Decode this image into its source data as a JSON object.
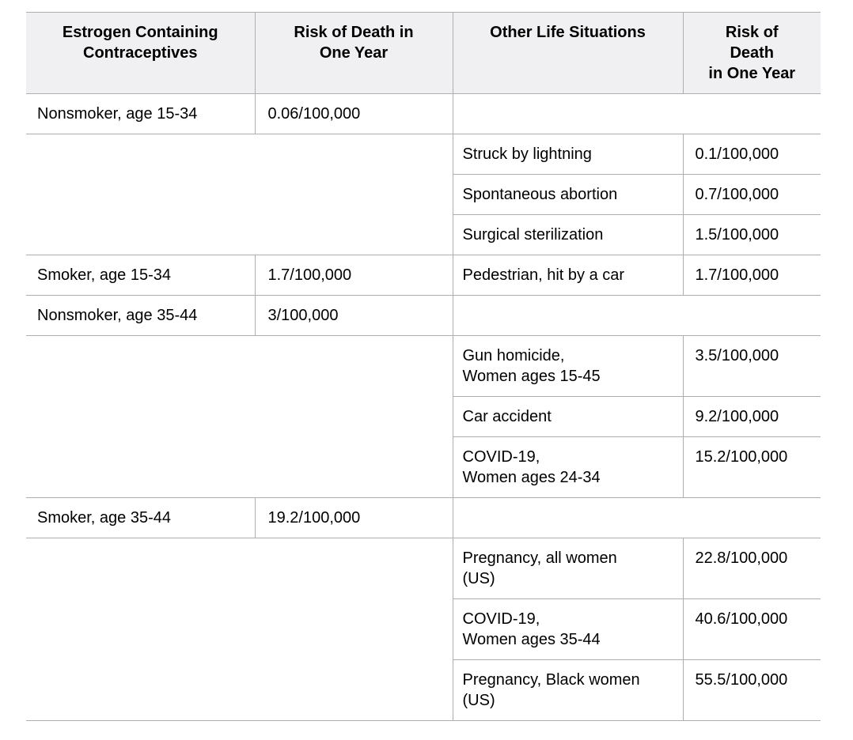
{
  "colors": {
    "header_background": "#f0f0f2",
    "border": "#acaeb1",
    "text": "#000000",
    "page_background": "#ffffff"
  },
  "table": {
    "headers": {
      "contraceptives": "Estrogen Containing\nContraceptives",
      "contraceptives_risk": "Risk of Death in\nOne Year",
      "situations": "Other Life Situations",
      "situations_risk": "Risk of\nDeath\nin One Year"
    },
    "rows": {
      "r1": {
        "c1": "Nonsmoker, age 15-34",
        "c2": "0.06/100,000"
      },
      "r2": {
        "c3": "Struck by lightning",
        "c4": "0.1/100,000"
      },
      "r3": {
        "c3": "Spontaneous abortion",
        "c4": "0.7/100,000"
      },
      "r4": {
        "c3": "Surgical sterilization",
        "c4": "1.5/100,000"
      },
      "r5": {
        "c1": "Smoker, age 15-34",
        "c2": "1.7/100,000",
        "c3": "Pedestrian, hit by a car",
        "c4": "1.7/100,000"
      },
      "r6": {
        "c1": "Nonsmoker, age 35-44",
        "c2": "3/100,000"
      },
      "r7": {
        "c3": "Gun homicide,\nWomen ages 15-45",
        "c4": "3.5/100,000"
      },
      "r8": {
        "c3": "Car accident",
        "c4": "9.2/100,000"
      },
      "r9": {
        "c3": "COVID-19,\nWomen ages 24-34",
        "c4": "15.2/100,000"
      },
      "r10": {
        "c1": "Smoker, age 35-44",
        "c2": "19.2/100,000"
      },
      "r11": {
        "c3": "Pregnancy, all women\n(US)",
        "c4": "22.8/100,000"
      },
      "r12": {
        "c3": "COVID-19,\nWomen ages 35-44",
        "c4": "40.6/100,000"
      },
      "r13": {
        "c3": "Pregnancy, Black women\n(US)",
        "c4": "55.5/100,000"
      }
    }
  }
}
